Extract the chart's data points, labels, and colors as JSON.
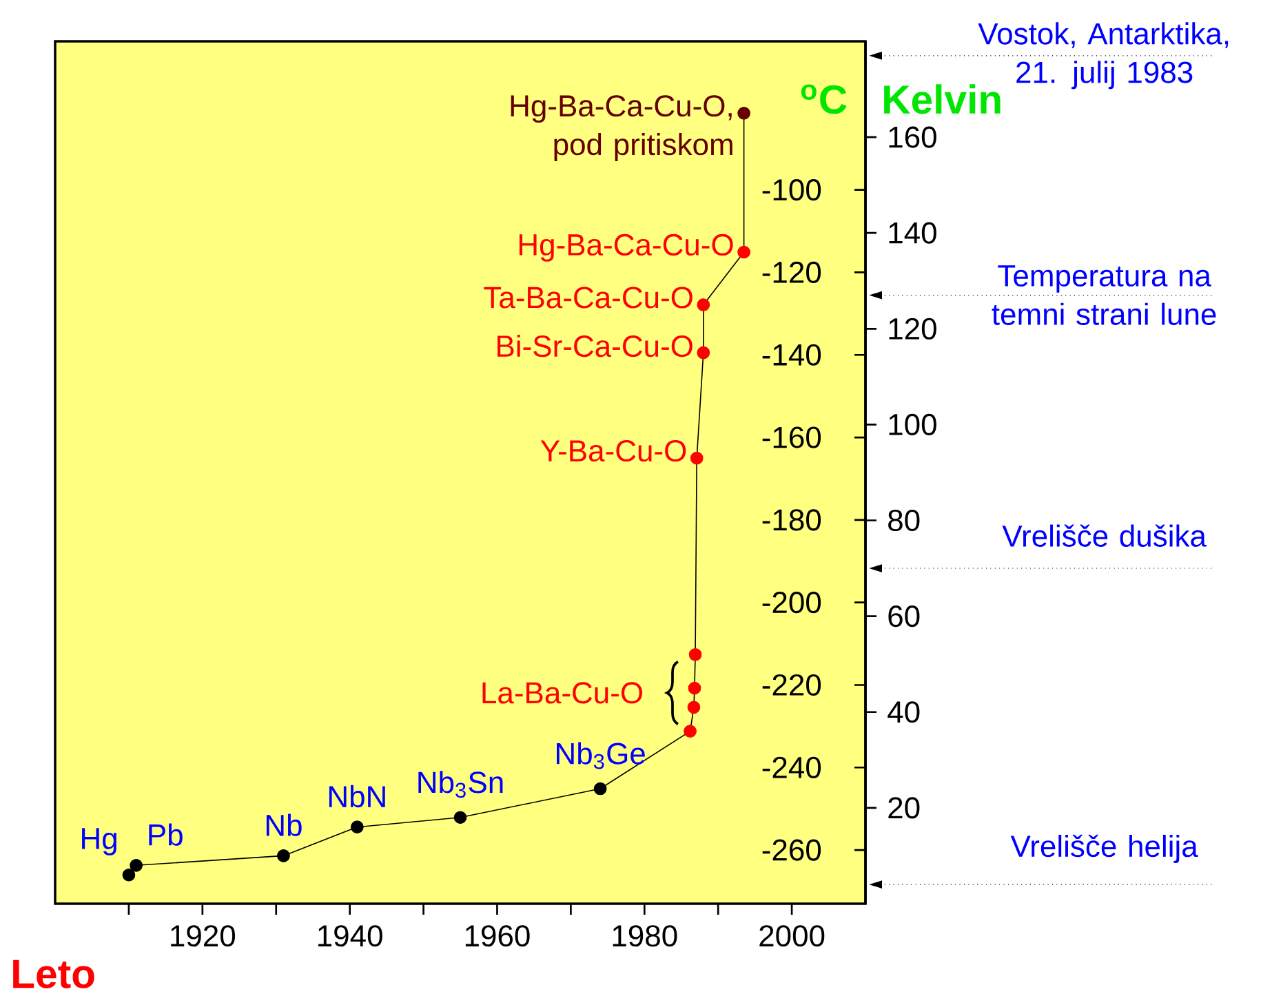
{
  "chart_data": {
    "type": "line",
    "xlabel": "Leto",
    "ylabel": "Kelvin",
    "y2label": "$^{o}$C",
    "xlim": [
      1900,
      2010
    ],
    "xticks": [
      {
        "value": 1910,
        "label": null
      },
      1920,
      {
        "value": 1930,
        "label": null
      },
      1940,
      {
        "value": 1950,
        "label": null
      },
      1960,
      {
        "value": 1970,
        "label": null
      },
      1980,
      {
        "value": 1990,
        "label": null
      },
      2000
    ],
    "ylim": [
      0,
      180
    ],
    "yticks": [
      20,
      40,
      60,
      80,
      100,
      120,
      140,
      160
    ],
    "y2lim": [
      -273,
      -64
    ],
    "y2ticks": [
      -260,
      -240,
      -220,
      -200,
      -180,
      -160,
      -140,
      -120,
      -100
    ],
    "marker": "circle",
    "grid": false,
    "series": [
      {
        "color": "#000000",
        "x": [
          1910,
          1911,
          1931,
          1941,
          1955,
          1974,
          1986.2,
          1986.7,
          1986.8,
          1986.9,
          1987.1,
          1988,
          1988,
          1993.5,
          1993.5
        ],
        "values": [
          6,
          8,
          10,
          16,
          18,
          24,
          36,
          41,
          45,
          52,
          93,
          115,
          125,
          136,
          165
        ],
        "colors": [
          "#000000",
          "#000000",
          "#000000",
          "#000000",
          "#000000",
          "#000000",
          "#ff0000",
          "#ff0000",
          "#ff0000",
          "#ff0000",
          "#ff0000",
          "#ff0000",
          "#ff0000",
          "#ff0000",
          "#660000"
        ]
      }
    ],
    "annotations": [
      {
        "text": "Hg",
        "x": 1910,
        "y": 6
      },
      {
        "text": "Pb",
        "x": 1911,
        "y": 8
      },
      {
        "text": "Nb",
        "x": 1931,
        "y": 10
      },
      {
        "text": "NbN",
        "x": 1941,
        "y": 16
      },
      {
        "text": "Nb$_{3}$Sn",
        "x": 1955,
        "y": 18
      },
      {
        "text": "Nb$_{3}$Ge",
        "x": 1974,
        "y": 24
      },
      {
        "text": "La-Ba-Cu-O",
        "x": 1986.8,
        "y": 44
      },
      {
        "text": "Y-Ba-Cu-O",
        "x": 1987.1,
        "y": 93
      },
      {
        "text": "Bi-Sr-Ca-Cu-O",
        "x": 1988,
        "y": 115
      },
      {
        "text": "Ta-Ba-Ca-Cu-O",
        "x": 1988,
        "y": 125
      },
      {
        "text": "Hg-Ba-Ca-Cu-O",
        "x": 1993.5,
        "y": 136
      },
      {
        "text": "Hg-Ba-Ca-Cu-O, pod pritiskom",
        "x": 1993.5,
        "y": 165
      }
    ],
    "ref_lines": [
      {
        "axis": "y",
        "value": 177,
        "label": "Vostok, Antarktika, 21. julij 1983",
        "color": "#000000",
        "line_style": "dotted"
      },
      {
        "axis": "y",
        "value": 127,
        "label": "Temperatura na temni strani lune",
        "color": "#000000",
        "line_style": "dotted"
      },
      {
        "axis": "y",
        "value": 70,
        "label": "Vrelišče dušika",
        "color": "#000000",
        "line_style": "dotted"
      },
      {
        "axis": "y",
        "value": 4,
        "label": "Vrelišče helija",
        "color": "#000000",
        "line_style": "dotted"
      }
    ]
  }
}
